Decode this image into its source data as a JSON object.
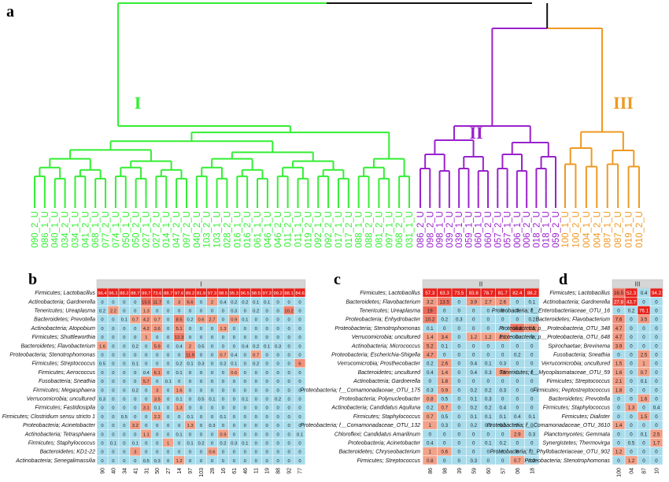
{
  "panels": {
    "a": "a",
    "b": "b",
    "c": "c",
    "d": "d"
  },
  "dendrogram": {
    "clusters": [
      {
        "label": "I",
        "color": "#33ee33"
      },
      {
        "label": "II",
        "color": "#9922cc"
      },
      {
        "label": "III",
        "color": "#ee9922"
      }
    ],
    "leaves_I": [
      "090_2_U",
      "086_1_U",
      "040_1_U",
      "034_2_U",
      "034_1_U",
      "041_2_U",
      "068_1_U",
      "077_2_U",
      "074_1_U",
      "050_1_U",
      "050_2_U",
      "027_1_U",
      "027_2_U",
      "014_1_U",
      "047_2_U",
      "097_2_U",
      "040_2_U",
      "103_2_U",
      "103_1_U",
      "028_2_U",
      "016_1_U",
      "016_2_U",
      "061_1_U",
      "046_1_U",
      "046_2_U",
      "011_2_U",
      "011_1_U",
      "019_2_U",
      "092_1_U",
      "092_2_U",
      "017_1_U",
      "017_2_U",
      "088_1_U",
      "088_2_U",
      "081_2_U",
      "097_1_U",
      "068_2_U",
      "031_1_U"
    ],
    "leaves_II": [
      "086_2_U",
      "098_2_U",
      "098_1_U",
      "039_2_U",
      "039_1_U",
      "059_1_U",
      "060_1_U",
      "060_2_U",
      "057_2_U",
      "057_1_U",
      "006_1_U",
      "006_2_U",
      "018_2_U",
      "018_1_U",
      "059_2_U"
    ],
    "leaves_III": [
      "100_1_U",
      "100_2_U",
      "004_1_U",
      "004_2_U",
      "087_1_U",
      "087_2_U",
      "019_1_U",
      "010_2_U"
    ]
  },
  "heatmaps": [
    {
      "title": "I",
      "rows": [
        "Firmicutes; Lactobacillus",
        "Actinobacteria; Gardnerella",
        "Tenericutes; Ureaplasma",
        "Bacteroidetes; Prevotella",
        "Actinobacteria; Atopobium",
        "Firmicutes; Shuttleworthia",
        "Bacteroidetes; Flavobacterium",
        "Proteobacteria; Stenotrophomonas",
        "Firmicutes; Streptococcus",
        "Firmicutes; Aerococcus",
        "Fusobacteria; Sneathia",
        "Firmicutes; Megasphaera",
        "Verrucomicrobia; uncultured",
        "Firmicutes; Fastidiosipila",
        "Firmicutes; Clostridium sensu stricto 1",
        "Proteobacteria; Acinetobacter",
        "Actinobacteria; Tetrasphaera",
        "Firmicutes; Staphylococcus",
        "Bacteroidetes; KD1-22",
        "Actinobacteria; Senegalimassilia"
      ],
      "cols": [
        "90",
        "40",
        "34",
        "41",
        "31",
        "50",
        "27",
        "14",
        "97",
        "103",
        "28",
        "16",
        "61",
        "46",
        "11",
        "19",
        "88",
        "92",
        "77"
      ],
      "values": [
        [
          96.4,
          96.1,
          88.2,
          88.7,
          99.7,
          73.6,
          88.7,
          97.6,
          89.2,
          81.9,
          97.3,
          98.5,
          95.3,
          96.5,
          98.5,
          97.3,
          99.2,
          88.1,
          84.6
        ],
        [
          0,
          0,
          0,
          0,
          15.5,
          11.7,
          0,
          3,
          6.6,
          0,
          2,
          0.4,
          0.2,
          0.2,
          0.1,
          0.1,
          0,
          0,
          0
        ],
        [
          0.2,
          2.2,
          0,
          0,
          1.3,
          0,
          0,
          0,
          0,
          0,
          0,
          0,
          0.3,
          0,
          0.2,
          0,
          0,
          10.2,
          0
        ],
        [
          0,
          0,
          0.1,
          0.7,
          4.2,
          0.7,
          0,
          8.5,
          0.2,
          0.6,
          2.7,
          0,
          0.9,
          0.1,
          0,
          0,
          0,
          0,
          0
        ],
        [
          0,
          0,
          0,
          0,
          4.2,
          3.6,
          0,
          5.1,
          0,
          0,
          0,
          1.3,
          0,
          0,
          0,
          0,
          0,
          0,
          0
        ],
        [
          0,
          0,
          0,
          0,
          1,
          0,
          0,
          12.3,
          0,
          0,
          0,
          0,
          0,
          0,
          0,
          0,
          0,
          0,
          0
        ],
        [
          1.6,
          0,
          0,
          0.2,
          0,
          5.9,
          0,
          0.4,
          2,
          0.5,
          0,
          0,
          0,
          0.4,
          0.2,
          0.1,
          0.3,
          0,
          0
        ],
        [
          0,
          0,
          0,
          0,
          0,
          0,
          0,
          0,
          11.9,
          0,
          0,
          0.7,
          0.4,
          0,
          0.7,
          0,
          0,
          0,
          0
        ],
        [
          0.5,
          0,
          0,
          0.1,
          0,
          0,
          0,
          0.2,
          0.1,
          0.3,
          0,
          0.2,
          0.1,
          0,
          0.2,
          0,
          0,
          0,
          6
        ],
        [
          0,
          0,
          0,
          0,
          0.4,
          6.1,
          0,
          0.1,
          0,
          0,
          0,
          0,
          0.6,
          0,
          0,
          0,
          0,
          0,
          0
        ],
        [
          0,
          0,
          0,
          0,
          5.7,
          0,
          0.1,
          0,
          0,
          0,
          0,
          0,
          0,
          0,
          0,
          0,
          0,
          0,
          0
        ],
        [
          0,
          0,
          0,
          0.2,
          0,
          3,
          0,
          1.6,
          0,
          0,
          0,
          0,
          0,
          0,
          0,
          0,
          0,
          0,
          0
        ],
        [
          0.3,
          0,
          0,
          0,
          0,
          3.5,
          0,
          0.1,
          0,
          0.5,
          0.1,
          0,
          0,
          0.1,
          0,
          0,
          0.2,
          0,
          0
        ],
        [
          0,
          0,
          0,
          0,
          3.1,
          0.1,
          0,
          1.3,
          0,
          0,
          0,
          0,
          0,
          0,
          0,
          0,
          0,
          0,
          0
        ],
        [
          0,
          0,
          0.5,
          0,
          0,
          2.2,
          0,
          0,
          0.1,
          0,
          0,
          0.1,
          0,
          0,
          0,
          0,
          0,
          0,
          0
        ],
        [
          0,
          0,
          0,
          3.2,
          0,
          0,
          0,
          0,
          1.3,
          0,
          0.3,
          0,
          0,
          0,
          0,
          0,
          0,
          0,
          0
        ],
        [
          0,
          0,
          0,
          0,
          1.1,
          0,
          0,
          0.1,
          0,
          0,
          0,
          0.9,
          0,
          0,
          0,
          0,
          0,
          0,
          0.1
        ],
        [
          0,
          0.1,
          0,
          0.1,
          0,
          0,
          1,
          0,
          0.1,
          0.2,
          0,
          0.2,
          0.3,
          0.1,
          0,
          0,
          0,
          0,
          0
        ],
        [
          0,
          0,
          0,
          3,
          0,
          0,
          0,
          0,
          0,
          0,
          0.6,
          0,
          0,
          0,
          0,
          0,
          0,
          0,
          0
        ],
        [
          0,
          0,
          0,
          0,
          0.5,
          0.3,
          0,
          1.2,
          0,
          0,
          0,
          0,
          0,
          0,
          0,
          0,
          0,
          0,
          0
        ]
      ]
    },
    {
      "title": "II",
      "rows": [
        "Firmicutes; Lactobacillus",
        "Bacteroidetes; Flavobacterium",
        "Tenericutes; Ureaplasma",
        "Proteobacteria; Enhydrobacter",
        "Proteobacteria; Stenotrophomonas",
        "Verrucomicrobia; uncultured",
        "Actinobacteria; Micrococcus",
        "Proteobacteria; Escherichia-Shigella",
        "Verrucomicrobia; Prosthecobacter",
        "Bacteroidetes; uncultured",
        "Actinobacteria; Gardnerella",
        "Proteobacteria; f__Comamonadaceae_OTU_175",
        "Proteobacteria; Polynucleobacter",
        "Actinobacteria; Candidatus Aquiluna",
        "Firmicutes; Staphylococcus",
        "Proteobacteria; f__Comamonadaceae_OTU_132",
        "Chloroflexi; Candidatus Amarilinum",
        "Proteobacteria; Acinetobacter",
        "Bacteroidetes; Chryseobacterium",
        "Firmicutes; Streptococcus"
      ],
      "cols": [
        "86",
        "98",
        "39",
        "59",
        "60",
        "57",
        "06",
        "18"
      ],
      "values": [
        [
          57.3,
          63.3,
          73.5,
          83.8,
          78.7,
          81.7,
          82.4,
          88.2
        ],
        [
          3.2,
          13.5,
          0,
          3.9,
          2.7,
          2.6,
          0,
          0.1
        ],
        [
          19,
          0,
          0,
          0,
          0,
          0,
          0,
          0
        ],
        [
          10.2,
          0.2,
          0.3,
          0,
          0,
          0,
          0,
          0.2
        ],
        [
          0.1,
          0,
          0,
          0,
          0,
          0,
          14.8,
          2.5
        ],
        [
          1.4,
          3.4,
          0,
          1.2,
          1.2,
          1.1,
          0,
          0
        ],
        [
          5.2,
          0.1,
          0,
          0,
          0,
          0,
          0,
          0
        ],
        [
          4.7,
          0,
          0,
          0,
          0,
          0,
          0.2,
          0
        ],
        [
          0.2,
          2.6,
          0,
          0.4,
          0.1,
          0.3,
          0,
          0
        ],
        [
          0.4,
          1.4,
          0,
          0.4,
          0.3,
          0.6,
          0,
          0
        ],
        [
          0,
          1.8,
          0,
          0,
          0,
          0,
          0,
          0
        ],
        [
          0.3,
          0.9,
          0,
          0.2,
          0.2,
          0.3,
          0,
          0
        ],
        [
          0.8,
          0.5,
          0,
          0.1,
          0.3,
          0,
          0,
          0
        ],
        [
          0.2,
          0.7,
          0,
          0.2,
          0.2,
          0.4,
          0,
          0
        ],
        [
          0.7,
          0.5,
          0,
          0.1,
          0.1,
          0.1,
          0.4,
          0.1
        ],
        [
          1,
          0.3,
          0,
          0.2,
          0.1,
          0.1,
          0,
          0
        ],
        [
          0,
          0,
          0,
          0,
          0,
          0,
          2.9,
          0.3
        ],
        [
          0.4,
          0,
          0,
          0,
          0.1,
          0.2,
          0,
          0
        ],
        [
          1,
          0.6,
          0,
          0,
          0,
          0,
          0,
          0
        ],
        [
          0.8,
          0,
          0,
          0.3,
          0,
          0,
          0.7,
          0.2
        ]
      ]
    },
    {
      "title": "III",
      "rows": [
        "Firmicutes; Lactobacillus",
        "Actinobacteria; Gardnerella",
        "Proteobacteria; f__Enterobacteriaceae_OTU_16",
        "Bacteroidetes; Flavobacterium",
        "Proteobacteria; p__Proteobacteria_OTU_348",
        "Proteobacteria; p__Proteobacteria_OTU_648",
        "Spirochaetae; Brevinema",
        "Fusobacteria; Sneathia",
        "Verrucomicrobia; uncultured",
        "Tenericutes; f__Mycoplasmataceae_OTU_59",
        "Firmicutes; Streptococcus",
        "Firmicutes; Peptostreptococcus",
        "Bacteroidetes; Prevotella",
        "Firmicutes; Staphylococcus",
        "Firmicutes; Dialister",
        "Proteobacteria; f__Comamonadaceae_OTU_3610",
        "Planctomycetes; Gemmata",
        "Synergistetes; Thermovirga",
        "Proteobacteria; f__Phyllobacteriaceae_OTU_902",
        "Proteobacteria; Stenotrophomonas"
      ],
      "cols": [
        "100",
        "04",
        "87",
        "10"
      ],
      "values": [
        [
          16.5,
          52.3,
          0.4,
          94.2
        ],
        [
          27.8,
          43.7,
          0,
          0
        ],
        [
          0,
          0.2,
          76.1,
          0
        ],
        [
          7.6,
          0,
          3.5,
          0
        ],
        [
          4.7,
          0,
          0,
          0
        ],
        [
          4.7,
          0,
          0,
          0
        ],
        [
          3.9,
          0,
          0,
          0
        ],
        [
          0,
          0,
          2.5,
          0
        ],
        [
          1.5,
          0,
          1,
          0
        ],
        [
          1.6,
          0,
          0.7,
          0
        ],
        [
          2.1,
          0,
          0.1,
          0
        ],
        [
          1.8,
          0,
          0,
          0
        ],
        [
          0,
          0,
          1.6,
          0
        ],
        [
          0,
          1.3,
          0,
          0.4
        ],
        [
          0,
          0,
          1.5,
          0
        ],
        [
          1.4,
          0,
          0,
          0
        ],
        [
          0,
          0,
          0.1,
          2.5
        ],
        [
          0,
          0.5,
          0,
          1.7
        ],
        [
          1.2,
          0,
          0,
          0
        ],
        [
          0,
          1.2,
          0,
          0
        ]
      ]
    }
  ],
  "colors": {
    "low": "#a7dcec",
    "mid": "#f2a58c",
    "high": "#e8221c",
    "strip": "#d6d6d6"
  }
}
